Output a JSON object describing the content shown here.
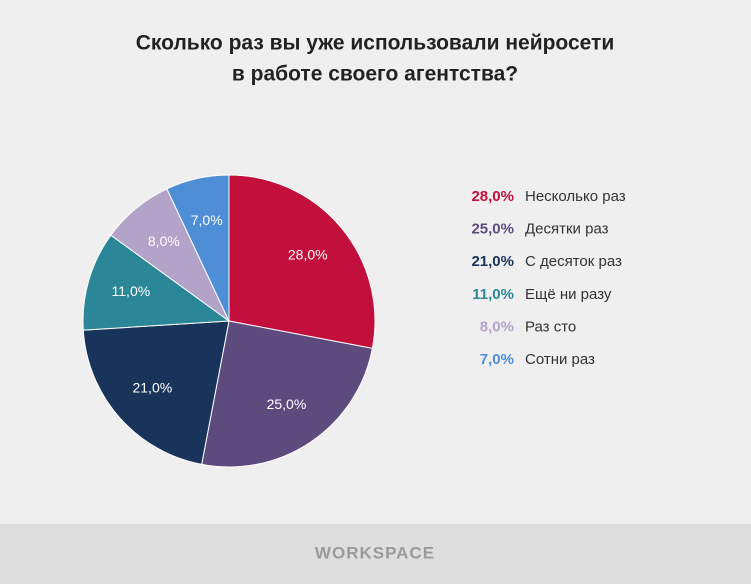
{
  "chart_data": {
    "type": "pie",
    "title": [
      "Сколько раз вы уже использовали нейросети",
      "в работе своего агентства?"
    ],
    "categories": [
      "Несколько раз",
      "Десятки раз",
      "С десяток раз",
      "Ещё ни разу",
      "Раз сто",
      "Сотни раз"
    ],
    "values": [
      28,
      25,
      21,
      11,
      8,
      7
    ],
    "value_labels": [
      "28,0%",
      "25,0%",
      "21,0%",
      "11,0%",
      "8,0%",
      "7,0%"
    ],
    "colors": [
      "#c20f3b",
      "#5e4b7e",
      "#19345a",
      "#2b8797",
      "#b3a3c9",
      "#4e8ed6"
    ],
    "legend": "right",
    "footer": "WORKSPACE"
  }
}
